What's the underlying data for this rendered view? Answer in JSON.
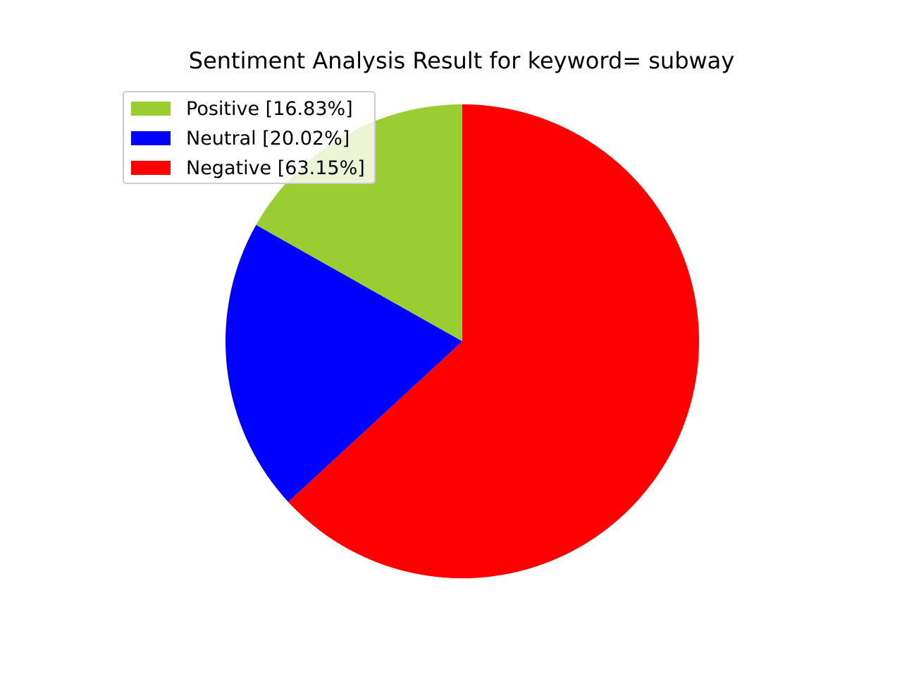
{
  "chart_data": {
    "type": "pie",
    "title": "Sentiment Analysis Result for keyword= subway",
    "slices": [
      {
        "label": "Positive [16.83%]",
        "value": 16.83,
        "color": "#9acd32"
      },
      {
        "label": "Neutral [20.02%]",
        "value": 20.02,
        "color": "#0000ff"
      },
      {
        "label": "Negative [63.15%]",
        "value": 63.15,
        "color": "#ff0000"
      }
    ],
    "start_angle_deg": 90,
    "direction": "counterclockwise",
    "legend_position": "upper-left"
  }
}
